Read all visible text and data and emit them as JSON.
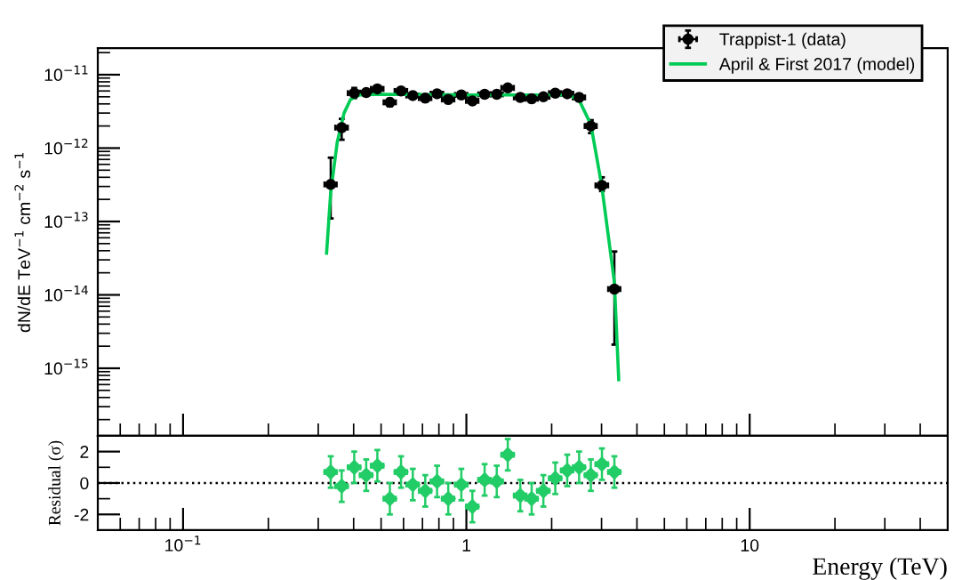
{
  "chart_data": [
    {
      "type": "scatter",
      "ylabel": "dN/dE TeV$^{−1}$ cm$^{−2}$ s$^{−1}$",
      "log": "xy",
      "xlim": [
        0.05,
        50
      ],
      "ylim": [
        1.2e-16,
        2.3e-11
      ],
      "xticks": [
        0.1,
        1,
        10
      ],
      "yticks": [
        {
          "value": 1e-15,
          "label": "10$^{−15}$"
        },
        {
          "value": 1e-14,
          "label": "10$^{−14}$"
        },
        {
          "value": 1e-13,
          "label": "10$^{−13}$"
        },
        {
          "value": 1e-12,
          "label": "10$^{−12}$"
        },
        {
          "value": 1e-11,
          "label": "10$^{−11}$"
        }
      ],
      "tick_labels": "y",
      "legend": "top right",
      "grid": false,
      "series": [
        {
          "name": "Trappist-1 (data)",
          "color": "#000000",
          "marker": "circle",
          "x": [
            0.332,
            0.363,
            0.402,
            0.443,
            0.485,
            0.537,
            0.588,
            0.647,
            0.716,
            0.788,
            0.863,
            0.96,
            1.05,
            1.16,
            1.28,
            1.4,
            1.55,
            1.7,
            1.87,
            2.06,
            2.27,
            2.5,
            2.75,
            3.01,
            3.33
          ],
          "values": [
            3.2e-13,
            1.9e-12,
            5.6e-12,
            5.7e-12,
            6.4e-12,
            4.2e-12,
            6e-12,
            5.2e-12,
            4.8e-12,
            5.5e-12,
            4.6e-12,
            5.3e-12,
            4.4e-12,
            5.4e-12,
            5.4e-12,
            6.6e-12,
            4.9e-12,
            4.7e-12,
            5e-12,
            5.6e-12,
            5.5e-12,
            4.9e-12,
            2e-12,
            3.1e-13,
            1.2e-14
          ],
          "errors": [
            [
              1.1e-13,
              7.4e-13
            ],
            [
              1.3e-12,
              2.5e-12
            ],
            [
              4.8e-12,
              6.6e-12
            ],
            5e-13,
            5e-13,
            5e-13,
            5e-13,
            5e-13,
            5e-13,
            5e-13,
            5e-13,
            5e-13,
            5e-13,
            5e-13,
            5e-13,
            5e-13,
            5e-13,
            5e-13,
            5e-13,
            5e-13,
            5e-13,
            5e-13,
            [
              1.6e-12,
              2.4e-12
            ],
            [
              2.6e-13,
              4e-13
            ],
            [
              2.1e-15,
              3.9e-14
            ]
          ],
          "xerrors": [
            0.016,
            0.018,
            0.02,
            0.022,
            0.024,
            0.026,
            0.029,
            0.032,
            0.035,
            0.039,
            0.042,
            0.047,
            0.051,
            0.057,
            0.063,
            0.069,
            0.076,
            0.083,
            0.092,
            0.1,
            0.11,
            0.12,
            0.13,
            0.15,
            0.16
          ]
        },
        {
          "name": "April & First 2017 (model)",
          "type": "line",
          "color": "#00cc55",
          "marker": "none",
          "line_style": "solid",
          "x": [
            0.321,
            0.332,
            0.35,
            0.37,
            0.39,
            0.42,
            0.5,
            1.0,
            2.0,
            2.3,
            2.5,
            2.75,
            3.0,
            3.33,
            3.45
          ],
          "values": [
            3.7e-14,
            2.5e-13,
            1.2e-12,
            3e-12,
            4.6e-12,
            5.3e-12,
            5.4e-12,
            5.3e-12,
            5.3e-12,
            5.3e-12,
            4.5e-12,
            2.1e-12,
            3.2e-13,
            1.5e-14,
            7e-16
          ]
        }
      ]
    },
    {
      "type": "scatter",
      "xlabel": "Energy (TeV)",
      "ylabel": "Residual (σ)",
      "log": "x",
      "xlim": [
        0.05,
        50
      ],
      "ylim": [
        -3,
        3
      ],
      "xticks": [
        {
          "value": 0.1,
          "label": "10$^{−1}$"
        },
        1,
        10
      ],
      "yticks": [
        -2,
        0,
        2
      ],
      "grid": false,
      "legend": false,
      "ref_lines": [
        {
          "axis": "y",
          "value": 0,
          "color": "#000000",
          "line_style": "dotted"
        }
      ],
      "series": [
        {
          "color": "#22cc66",
          "marker": "diamond",
          "x": [
            0.332,
            0.363,
            0.402,
            0.443,
            0.485,
            0.537,
            0.588,
            0.647,
            0.716,
            0.788,
            0.863,
            0.96,
            1.05,
            1.16,
            1.28,
            1.4,
            1.55,
            1.7,
            1.87,
            2.06,
            2.27,
            2.5,
            2.75,
            3.01,
            3.33
          ],
          "values": [
            0.7,
            -0.2,
            1.0,
            0.5,
            1.1,
            -1.0,
            0.7,
            -0.1,
            -0.5,
            0.1,
            -1.0,
            -0.1,
            -1.5,
            0.2,
            0.1,
            1.8,
            -0.8,
            -1.0,
            -0.5,
            0.3,
            0.8,
            1.0,
            0.5,
            1.2,
            0.7
          ],
          "errors": [
            1,
            1,
            1,
            1,
            1,
            1,
            1,
            1,
            1,
            1,
            1,
            1,
            1,
            1,
            1,
            1,
            1,
            1,
            1,
            1,
            1,
            1,
            1,
            1,
            1
          ],
          "xerrors": [
            0.016,
            0.018,
            0.02,
            0.022,
            0.024,
            0.026,
            0.029,
            0.032,
            0.035,
            0.039,
            0.042,
            0.047,
            0.051,
            0.057,
            0.063,
            0.069,
            0.076,
            0.083,
            0.092,
            0.1,
            0.11,
            0.12,
            0.13,
            0.15,
            0.16
          ]
        }
      ]
    }
  ]
}
